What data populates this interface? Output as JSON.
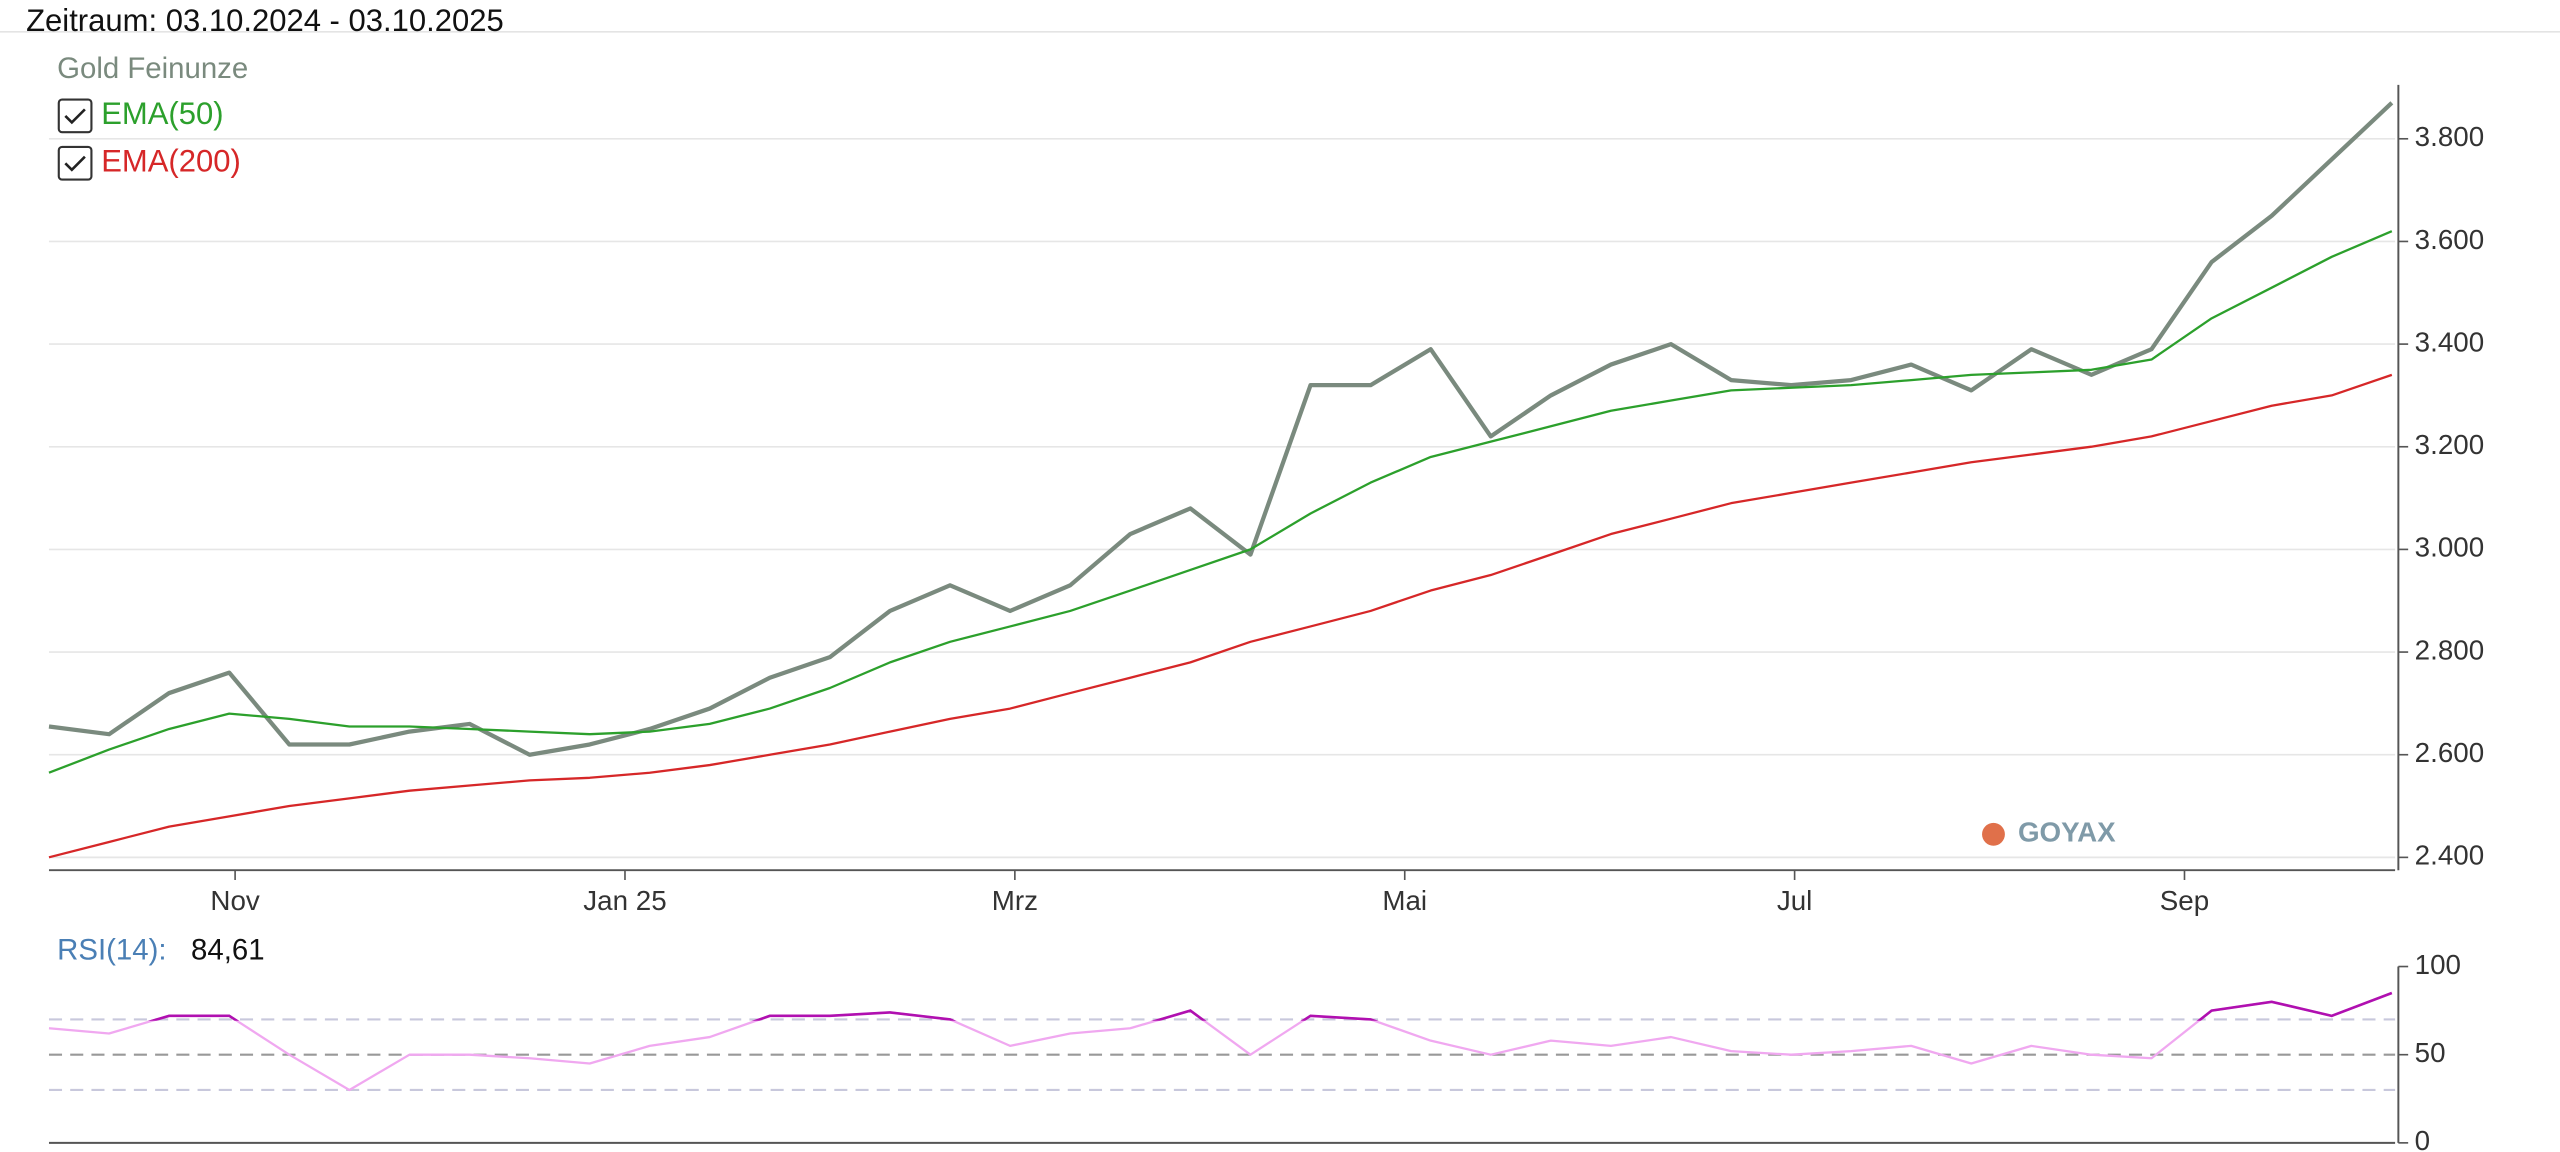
{
  "header": {
    "title": "Zeitraum: 03.10.2024 - 03.10.2025"
  },
  "watermark": "GOYAX",
  "chart_data": [
    {
      "type": "line",
      "title": "Gold Feinunze",
      "xticks": [
        "Nov",
        "Jan 25",
        "Mrz",
        "Mai",
        "Jul",
        "Sep"
      ],
      "ylim": [
        2375,
        3905
      ],
      "yticks": [
        {
          "value": 2400,
          "label": "2.400"
        },
        {
          "value": 2600,
          "label": "2.600"
        },
        {
          "value": 2800,
          "label": "2.800"
        },
        {
          "value": 3000,
          "label": "3.000"
        },
        {
          "value": 3200,
          "label": "3.200"
        },
        {
          "value": 3400,
          "label": "3.400"
        },
        {
          "value": 3600,
          "label": "3.600"
        },
        {
          "value": 3800,
          "label": "3.800"
        }
      ],
      "grid": true,
      "series": [
        {
          "name": "Gold Feinunze",
          "color": "#7a8a7e",
          "legend": false,
          "values": [
            2655,
            2640,
            2720,
            2760,
            2620,
            2620,
            2645,
            2660,
            2600,
            2620,
            2650,
            2690,
            2750,
            2790,
            2880,
            2930,
            2880,
            2930,
            3030,
            3080,
            2990,
            3320,
            3320,
            3390,
            3220,
            3300,
            3360,
            3400,
            3330,
            3320,
            3330,
            3360,
            3310,
            3390,
            3340,
            3390,
            3560,
            3650,
            3760,
            3870
          ]
        },
        {
          "name": "EMA(50)",
          "color": "#2ca02c",
          "legend": true,
          "values": [
            2565,
            2610,
            2650,
            2680,
            2670,
            2655,
            2655,
            2650,
            2645,
            2640,
            2645,
            2660,
            2690,
            2730,
            2780,
            2820,
            2850,
            2880,
            2920,
            2960,
            3000,
            3070,
            3130,
            3180,
            3210,
            3240,
            3270,
            3290,
            3310,
            3315,
            3320,
            3330,
            3340,
            3345,
            3350,
            3370,
            3450,
            3510,
            3570,
            3620
          ]
        },
        {
          "name": "EMA(200)",
          "color": "#d62728",
          "legend": true,
          "values": [
            2400,
            2430,
            2460,
            2480,
            2500,
            2515,
            2530,
            2540,
            2550,
            2555,
            2565,
            2580,
            2600,
            2620,
            2645,
            2670,
            2690,
            2720,
            2750,
            2780,
            2820,
            2850,
            2880,
            2920,
            2950,
            2990,
            3030,
            3060,
            3090,
            3110,
            3130,
            3150,
            3170,
            3185,
            3200,
            3220,
            3250,
            3280,
            3300,
            3340
          ]
        }
      ]
    },
    {
      "type": "line",
      "title": "RSI(14):",
      "last_value": 84.61,
      "last_value_label": "84,61",
      "ylim": [
        0,
        100
      ],
      "yticks": [
        0,
        50,
        100
      ],
      "levels": [
        30,
        50,
        70
      ],
      "series": [
        {
          "name": "RSI(14)",
          "color": "#f0a8f0",
          "high_color": "#b010b0",
          "values": [
            65,
            62,
            72,
            72,
            50,
            30,
            50,
            50,
            48,
            45,
            55,
            60,
            72,
            72,
            74,
            70,
            55,
            62,
            65,
            75,
            50,
            72,
            70,
            58,
            50,
            58,
            55,
            60,
            52,
            50,
            52,
            55,
            45,
            55,
            50,
            48,
            75,
            80,
            72,
            85
          ]
        }
      ]
    }
  ]
}
